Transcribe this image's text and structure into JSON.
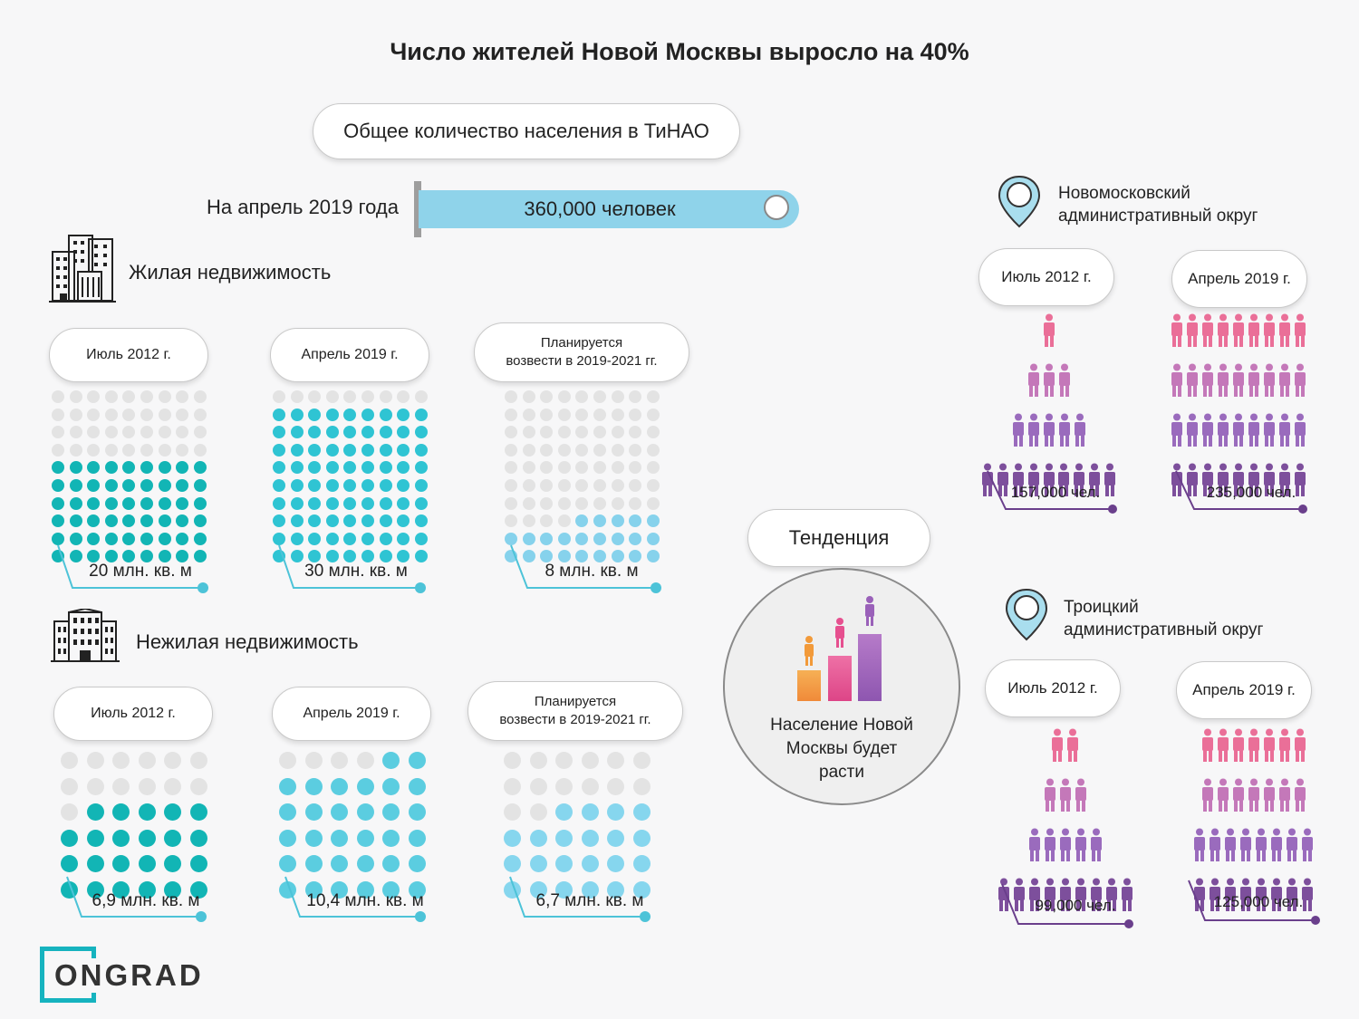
{
  "title": "Число жителей Новой Москвы выросло на 40%",
  "subtitle": "Общее количество населения в ТиНАО",
  "population": {
    "as_of": "На апрель 2019 года",
    "value": "360,000 человек"
  },
  "residential": {
    "heading": "Жилая недвижимость",
    "panels": [
      {
        "label": "Июль 2012 г.",
        "value": "20 млн. кв. м",
        "rows": 10,
        "cols": 9,
        "filled": 54,
        "partial": 0,
        "color": "#12b5b5"
      },
      {
        "label": "Апрель 2019 г.",
        "value": "30 млн. кв. м",
        "rows": 10,
        "cols": 9,
        "filled": 81,
        "partial": 0,
        "color": "#2fc4d3"
      },
      {
        "label_line1": "Планируется",
        "label_line2": "возвести в 2019-2021 гг.",
        "value": "8 млн. кв. м",
        "rows": 10,
        "cols": 9,
        "filled": 23,
        "partial": 0,
        "color": "#86d2ec"
      }
    ]
  },
  "nonresidential": {
    "heading": "Нежилая недвижимость",
    "panels": [
      {
        "label": "Июль 2012 г.",
        "value": "6,9 млн. кв. м",
        "rows": 6,
        "cols": 6,
        "filled": 23,
        "color": "#12b5b5"
      },
      {
        "label": "Апрель 2019 г.",
        "value": "10,4 млн. кв. м",
        "rows": 6,
        "cols": 6,
        "filled": 32,
        "color": "#5bcde0"
      },
      {
        "label_line1": "Планируется",
        "label_line2": "возвести в 2019-2021 гг.",
        "value": "6,7 млн. кв. м",
        "rows": 6,
        "cols": 6,
        "filled": 22,
        "color": "#86d6ee"
      }
    ]
  },
  "trend": {
    "heading": "Тенденция",
    "text_line1": "Население Новой",
    "text_line2": "Москвы будет",
    "text_line3": "расти"
  },
  "districts": [
    {
      "name_line1": "Новомосковский",
      "name_line2": "административный округ",
      "periods": [
        {
          "label": "Июль 2012 г.",
          "value": "157,000 чел.",
          "rows": [
            1,
            3,
            5,
            9
          ]
        },
        {
          "label": "Апрель 2019 г.",
          "value": "235,000 чел.",
          "rows": [
            9,
            9,
            9,
            9
          ]
        }
      ]
    },
    {
      "name_line1": "Троицкий",
      "name_line2": "административный округ",
      "periods": [
        {
          "label": "Июль 2012 г.",
          "value": "99,000 чел.",
          "rows": [
            2,
            3,
            5,
            9
          ]
        },
        {
          "label": "Апрель 2019 г.",
          "value": "125,000 чел.",
          "rows": [
            7,
            7,
            8,
            8
          ]
        }
      ]
    }
  ],
  "colors": {
    "dot_empty": "#e3e3e3",
    "people_rows": [
      "#ea6f98",
      "#c478b9",
      "#9a6bbd",
      "#7d4f9c"
    ],
    "trend_bars": [
      "#f39a3d",
      "#e6508f",
      "#9a61b9"
    ]
  },
  "icons": [
    "location-pin-icon",
    "residential-building-icon",
    "office-building-icon",
    "person-icon"
  ],
  "logo": "ONGRAD"
}
